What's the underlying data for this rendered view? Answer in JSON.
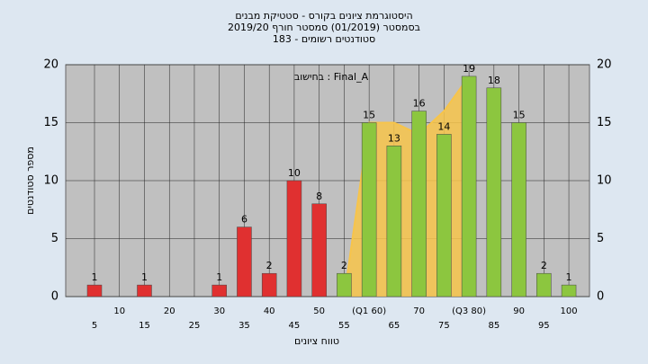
{
  "chart_data": {
    "type": "bar",
    "title": "היסטוגרמת ציונים בקורס - סטטיקת מבנים",
    "subtitle": "בסמסטר  (01/2019)  סמסטר חורף 2019/20",
    "subtitle2": "סטודנטים רשומים - 183",
    "annotation": "בחישוב : Final_A",
    "x_label": "טווח ציונים",
    "y_label": "מספר סטודנטים",
    "categories": [
      "5",
      "10",
      "15",
      "20",
      "25",
      "30",
      "35",
      "40",
      "45",
      "50",
      "55",
      "(Q1 60)",
      "65",
      "70",
      "75",
      "(Q3 80)",
      "85",
      "90",
      "95",
      "100"
    ],
    "values": [
      1,
      0,
      1,
      0,
      0,
      1,
      6,
      2,
      10,
      8,
      2,
      15,
      13,
      16,
      14,
      19,
      18,
      15,
      2,
      1
    ],
    "colors": [
      "#e03030",
      "#e03030",
      "#e03030",
      "#e03030",
      "#e03030",
      "#e03030",
      "#e03030",
      "#e03030",
      "#e03030",
      "#e03030",
      "#8cc63f",
      "#8cc63f",
      "#8cc63f",
      "#8cc63f",
      "#8cc63f",
      "#8cc63f",
      "#8cc63f",
      "#8cc63f",
      "#8cc63f",
      "#8cc63f"
    ],
    "area": {
      "color": "#f7c44a",
      "values": [
        null,
        null,
        null,
        null,
        null,
        null,
        null,
        null,
        null,
        null,
        0,
        15,
        15,
        14,
        16,
        19,
        null,
        null,
        null,
        null
      ]
    },
    "ylim": [
      0,
      20
    ],
    "yticks": [
      0,
      5,
      10,
      15,
      20
    ],
    "grid": true
  }
}
